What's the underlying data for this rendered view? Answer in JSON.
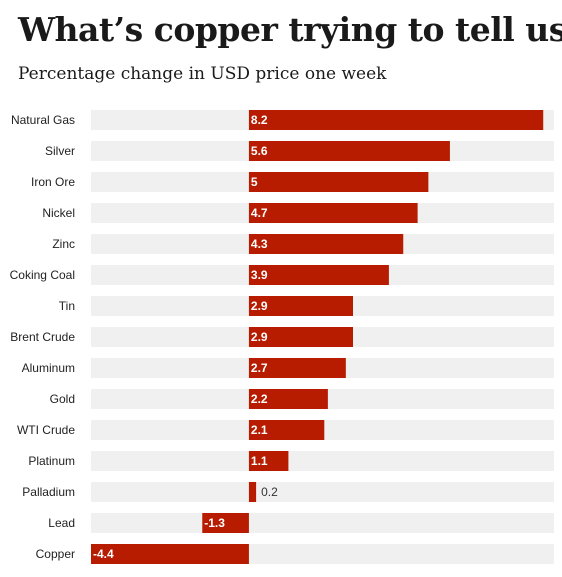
{
  "title": "What’s copper trying to tell us?",
  "subtitle": "Percentage change in USD price one week",
  "colors": {
    "bar": "#b71c00",
    "track": "#f0f0f0"
  },
  "chart_data": {
    "type": "bar",
    "orientation": "horizontal",
    "title": "What’s copper trying to tell us?",
    "subtitle": "Percentage change in USD price one week",
    "categories": [
      "Natural Gas",
      "Silver",
      "Iron Ore",
      "Nickel",
      "Zinc",
      "Coking Coal",
      "Tin",
      "Brent Crude",
      "Aluminum",
      "Gold",
      "WTI Crude",
      "Platinum",
      "Palladium",
      "Lead",
      "Copper"
    ],
    "values": [
      8.2,
      5.6,
      5,
      4.7,
      4.3,
      3.9,
      2.9,
      2.9,
      2.7,
      2.2,
      2.1,
      1.1,
      0.2,
      -1.3,
      -4.4
    ],
    "labels": [
      "8.2",
      "5.6",
      "5",
      "4.7",
      "4.3",
      "3.9",
      "2.9",
      "2.9",
      "2.7",
      "2.2",
      "2.1",
      "1.1",
      "0.2",
      "-1.3",
      "-4.4"
    ],
    "xlim": [
      -4.4,
      8.5
    ],
    "grid": false,
    "legend": "none"
  }
}
